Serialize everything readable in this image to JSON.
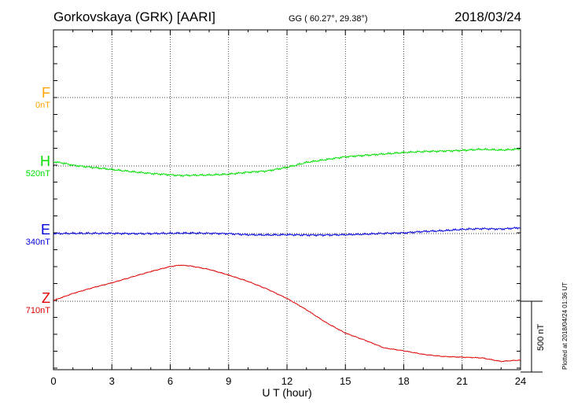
{
  "header": {
    "station": "Gorkovskaya (GRK)  [AARI]",
    "coords": "GG ( 60.27°,  29.38°)",
    "date": "2018/03/24"
  },
  "channels": [
    {
      "letter": "F",
      "baseline": "0nT",
      "color": "#ffa500"
    },
    {
      "letter": "H",
      "baseline": "520nT",
      "color": "#00e000"
    },
    {
      "letter": "E",
      "baseline": "340nT",
      "color": "#0000e0"
    },
    {
      "letter": "Z",
      "baseline": "710nT",
      "color": "#e00000"
    }
  ],
  "scale_label": "500 nT",
  "plotted_note": "Plotted at 2018/04/24 01:36 UT",
  "chart_data": {
    "type": "line",
    "xlabel": "U T (hour)",
    "xlim": [
      0,
      24
    ],
    "xticks": [
      "0",
      "3",
      "6",
      "9",
      "12",
      "15",
      "18",
      "21",
      "24"
    ],
    "grid": true,
    "series": [
      {
        "name": "H",
        "color": "#00e000",
        "x": [
          0,
          0.5,
          1,
          2,
          3,
          4,
          5,
          6,
          6.5,
          7,
          8,
          9,
          10,
          11,
          12,
          13,
          14,
          15,
          16,
          17,
          18,
          19,
          20,
          21,
          22,
          23,
          24
        ],
        "y": [
          -30,
          -20,
          -5,
          10,
          25,
          40,
          53,
          62,
          68,
          66,
          64,
          58,
          44,
          35,
          10,
          -25,
          -45,
          -65,
          -75,
          -85,
          -95,
          -102,
          -105,
          -110,
          -118,
          -112,
          -120
        ]
      },
      {
        "name": "E",
        "color": "#0000e0",
        "x": [
          0,
          1,
          2,
          3,
          4,
          5,
          6,
          7,
          8,
          9,
          10,
          11,
          12,
          13,
          14,
          15,
          16,
          17,
          18,
          19,
          20,
          21,
          22,
          23,
          24
        ],
        "y": [
          0,
          -2,
          -2,
          -2,
          0,
          0,
          -2,
          -4,
          -2,
          0,
          8,
          10,
          8,
          10,
          10,
          8,
          4,
          -2,
          -5,
          -15,
          -20,
          -30,
          -35,
          -32,
          -42
        ]
      },
      {
        "name": "Z",
        "color": "#e00000",
        "x": [
          0,
          1,
          2,
          3,
          4,
          5,
          6,
          6.5,
          7,
          8,
          9,
          10,
          11,
          12,
          13,
          14,
          15,
          16,
          17,
          18,
          19,
          20,
          21,
          22,
          23,
          24
        ],
        "y": [
          -5,
          -55,
          -95,
          -130,
          -170,
          -210,
          -245,
          -255,
          -250,
          -225,
          -185,
          -140,
          -85,
          -20,
          60,
          150,
          225,
          275,
          330,
          350,
          375,
          390,
          395,
          400,
          425,
          415
        ]
      }
    ]
  }
}
